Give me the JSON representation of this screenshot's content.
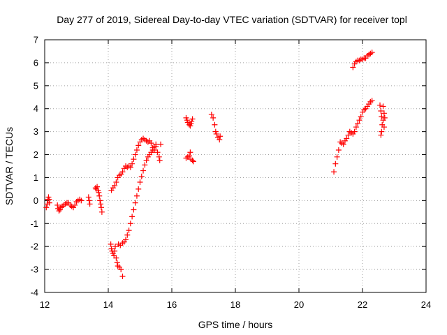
{
  "chart_data": {
    "type": "scatter",
    "title": "Day 277 of 2019, Sidereal Day-to-day VTEC variation (SDTVAR) for receiver topl",
    "xlabel": "GPS time / hours",
    "ylabel": "SDTVAR / TECUs",
    "xlim": [
      12,
      24
    ],
    "ylim": [
      -4,
      7
    ],
    "xticks": [
      12,
      14,
      16,
      18,
      20,
      22,
      24
    ],
    "yticks": [
      -4,
      -3,
      -2,
      -1,
      0,
      1,
      2,
      3,
      4,
      5,
      6,
      7
    ],
    "grid": true,
    "marker": "+",
    "color": "#ff0000",
    "series": [
      {
        "name": "SDTVAR",
        "points": [
          [
            12.05,
            -0.3
          ],
          [
            12.08,
            -0.15
          ],
          [
            12.1,
            0.05
          ],
          [
            12.12,
            0.15
          ],
          [
            12.14,
            0.05
          ],
          [
            12.15,
            -0.1
          ],
          [
            12.4,
            -0.2
          ],
          [
            12.42,
            -0.35
          ],
          [
            12.45,
            -0.45
          ],
          [
            12.48,
            -0.4
          ],
          [
            12.5,
            -0.3
          ],
          [
            12.55,
            -0.25
          ],
          [
            12.6,
            -0.2
          ],
          [
            12.65,
            -0.15
          ],
          [
            12.7,
            -0.1
          ],
          [
            12.75,
            -0.1
          ],
          [
            12.8,
            -0.2
          ],
          [
            12.85,
            -0.25
          ],
          [
            12.9,
            -0.3
          ],
          [
            12.95,
            -0.2
          ],
          [
            13.0,
            -0.05
          ],
          [
            13.05,
            0.0
          ],
          [
            13.1,
            0.05
          ],
          [
            13.15,
            0.0
          ],
          [
            13.38,
            0.15
          ],
          [
            13.4,
            0.0
          ],
          [
            13.42,
            -0.15
          ],
          [
            13.6,
            0.55
          ],
          [
            13.62,
            0.5
          ],
          [
            13.65,
            0.6
          ],
          [
            13.68,
            0.45
          ],
          [
            13.7,
            0.35
          ],
          [
            13.72,
            0.2
          ],
          [
            13.74,
            0.0
          ],
          [
            13.76,
            -0.15
          ],
          [
            13.78,
            -0.3
          ],
          [
            13.8,
            -0.5
          ],
          [
            14.1,
            0.45
          ],
          [
            14.15,
            0.55
          ],
          [
            14.2,
            0.65
          ],
          [
            14.25,
            0.8
          ],
          [
            14.3,
            1.0
          ],
          [
            14.35,
            1.1
          ],
          [
            14.4,
            1.15
          ],
          [
            14.45,
            1.25
          ],
          [
            14.5,
            1.4
          ],
          [
            14.55,
            1.5
          ],
          [
            14.6,
            1.45
          ],
          [
            14.65,
            1.5
          ],
          [
            14.7,
            1.45
          ],
          [
            14.75,
            1.6
          ],
          [
            14.8,
            1.8
          ],
          [
            14.85,
            2.0
          ],
          [
            14.9,
            2.2
          ],
          [
            14.95,
            2.4
          ],
          [
            15.0,
            2.55
          ],
          [
            15.05,
            2.65
          ],
          [
            15.1,
            2.7
          ],
          [
            15.15,
            2.65
          ],
          [
            15.2,
            2.6
          ],
          [
            15.25,
            2.55
          ],
          [
            15.3,
            2.6
          ],
          [
            15.35,
            2.5
          ],
          [
            15.4,
            2.3
          ],
          [
            15.45,
            2.2
          ],
          [
            15.5,
            2.35
          ],
          [
            15.55,
            2.1
          ],
          [
            15.6,
            1.9
          ],
          [
            15.62,
            1.75
          ],
          [
            15.65,
            2.45
          ],
          [
            14.08,
            -1.9
          ],
          [
            14.1,
            -2.1
          ],
          [
            14.12,
            -2.2
          ],
          [
            14.15,
            -2.3
          ],
          [
            14.18,
            -2.4
          ],
          [
            14.2,
            -2.2
          ],
          [
            14.22,
            -2.0
          ],
          [
            14.25,
            -2.5
          ],
          [
            14.28,
            -2.7
          ],
          [
            14.3,
            -2.85
          ],
          [
            14.35,
            -2.9
          ],
          [
            14.4,
            -3.0
          ],
          [
            14.45,
            -3.3
          ],
          [
            14.32,
            -1.9
          ],
          [
            14.38,
            -1.95
          ],
          [
            14.45,
            -1.85
          ],
          [
            14.5,
            -1.8
          ],
          [
            14.55,
            -1.7
          ],
          [
            14.6,
            -1.5
          ],
          [
            14.65,
            -1.3
          ],
          [
            14.7,
            -1.0
          ],
          [
            14.75,
            -0.7
          ],
          [
            14.8,
            -0.4
          ],
          [
            14.85,
            -0.1
          ],
          [
            14.9,
            0.2
          ],
          [
            14.95,
            0.5
          ],
          [
            15.0,
            0.8
          ],
          [
            15.05,
            1.05
          ],
          [
            15.1,
            1.3
          ],
          [
            15.15,
            1.55
          ],
          [
            15.2,
            1.75
          ],
          [
            15.25,
            1.9
          ],
          [
            15.3,
            2.0
          ],
          [
            15.35,
            2.1
          ],
          [
            15.4,
            2.2
          ],
          [
            15.45,
            2.35
          ],
          [
            15.5,
            2.45
          ],
          [
            16.45,
            3.6
          ],
          [
            16.48,
            3.5
          ],
          [
            16.5,
            3.4
          ],
          [
            16.55,
            3.3
          ],
          [
            16.58,
            3.25
          ],
          [
            16.6,
            3.35
          ],
          [
            16.62,
            3.45
          ],
          [
            16.65,
            3.55
          ],
          [
            16.45,
            1.85
          ],
          [
            16.5,
            1.9
          ],
          [
            16.55,
            1.95
          ],
          [
            16.58,
            2.1
          ],
          [
            16.6,
            1.8
          ],
          [
            16.65,
            1.75
          ],
          [
            16.68,
            1.7
          ],
          [
            17.25,
            3.75
          ],
          [
            17.3,
            3.6
          ],
          [
            17.35,
            3.3
          ],
          [
            17.38,
            3.0
          ],
          [
            17.4,
            2.9
          ],
          [
            17.45,
            2.75
          ],
          [
            17.5,
            2.65
          ],
          [
            17.52,
            2.8
          ],
          [
            21.1,
            1.25
          ],
          [
            21.15,
            1.6
          ],
          [
            21.2,
            1.9
          ],
          [
            21.25,
            2.2
          ],
          [
            21.3,
            2.55
          ],
          [
            21.35,
            2.5
          ],
          [
            21.4,
            2.45
          ],
          [
            21.45,
            2.6
          ],
          [
            21.5,
            2.7
          ],
          [
            21.55,
            2.85
          ],
          [
            21.6,
            3.0
          ],
          [
            21.65,
            2.95
          ],
          [
            21.7,
            2.9
          ],
          [
            21.75,
            3.0
          ],
          [
            21.8,
            3.2
          ],
          [
            21.85,
            3.35
          ],
          [
            21.9,
            3.5
          ],
          [
            21.95,
            3.65
          ],
          [
            22.0,
            3.85
          ],
          [
            22.05,
            3.95
          ],
          [
            22.1,
            4.0
          ],
          [
            22.15,
            4.1
          ],
          [
            22.2,
            4.2
          ],
          [
            22.25,
            4.3
          ],
          [
            22.3,
            4.35
          ],
          [
            21.7,
            5.8
          ],
          [
            21.75,
            5.95
          ],
          [
            21.8,
            6.05
          ],
          [
            21.85,
            6.1
          ],
          [
            21.9,
            6.1
          ],
          [
            21.95,
            6.15
          ],
          [
            22.0,
            6.15
          ],
          [
            22.05,
            6.2
          ],
          [
            22.1,
            6.2
          ],
          [
            22.15,
            6.3
          ],
          [
            22.2,
            6.35
          ],
          [
            22.25,
            6.4
          ],
          [
            22.3,
            6.45
          ],
          [
            22.55,
            4.15
          ],
          [
            22.58,
            3.9
          ],
          [
            22.6,
            3.65
          ],
          [
            22.62,
            3.3
          ],
          [
            22.6,
            3.0
          ],
          [
            22.58,
            2.85
          ],
          [
            22.65,
            4.1
          ],
          [
            22.68,
            3.8
          ],
          [
            22.7,
            3.6
          ],
          [
            22.65,
            3.5
          ],
          [
            22.68,
            3.2
          ]
        ]
      }
    ]
  }
}
